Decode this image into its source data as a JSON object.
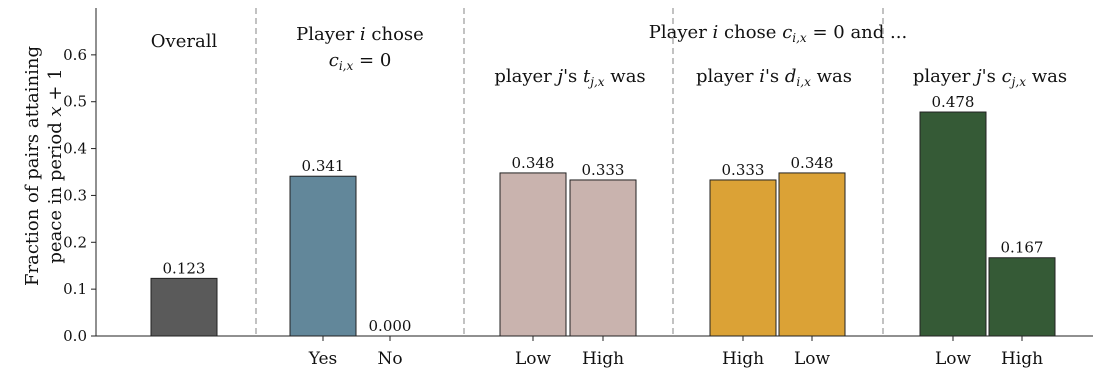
{
  "chart_data": {
    "type": "bar",
    "ylabel_lines": [
      "Fraction of pairs attaining",
      "peace in period x + 1"
    ],
    "ylim": [
      0,
      0.7
    ],
    "yticks": [
      "0.0",
      "0.1",
      "0.2",
      "0.3",
      "0.4",
      "0.5",
      "0.6"
    ],
    "ytick_values": [
      0,
      0.1,
      0.2,
      0.3,
      0.4,
      0.5,
      0.6
    ],
    "grid": false,
    "super_label": "Player i chose c_{i,x} = 0 and ...",
    "groups": [
      {
        "label": "Overall",
        "color": "#5a5a5a",
        "bars": [
          {
            "category": "",
            "value": 0.123,
            "label": "0.123"
          }
        ]
      },
      {
        "label": "Player i chose c_{i,x} = 0",
        "color": "#62879a",
        "bars": [
          {
            "category": "Yes",
            "value": 0.341,
            "label": "0.341"
          },
          {
            "category": "No",
            "value": 0.0,
            "label": "0.000"
          }
        ]
      },
      {
        "label": "player j's t_{j,x} was",
        "color": "#c9b3ae",
        "bars": [
          {
            "category": "Low",
            "value": 0.348,
            "label": "0.348"
          },
          {
            "category": "High",
            "value": 0.333,
            "label": "0.333"
          }
        ]
      },
      {
        "label": "player i's d_{i,x} was",
        "color": "#dba236",
        "bars": [
          {
            "category": "High",
            "value": 0.333,
            "label": "0.333"
          },
          {
            "category": "Low",
            "value": 0.348,
            "label": "0.348"
          }
        ]
      },
      {
        "label": "player j's c_{j,x} was",
        "color": "#355a36",
        "bars": [
          {
            "category": "Low",
            "value": 0.478,
            "label": "0.478"
          },
          {
            "category": "High",
            "value": 0.167,
            "label": "0.167"
          }
        ]
      }
    ]
  }
}
